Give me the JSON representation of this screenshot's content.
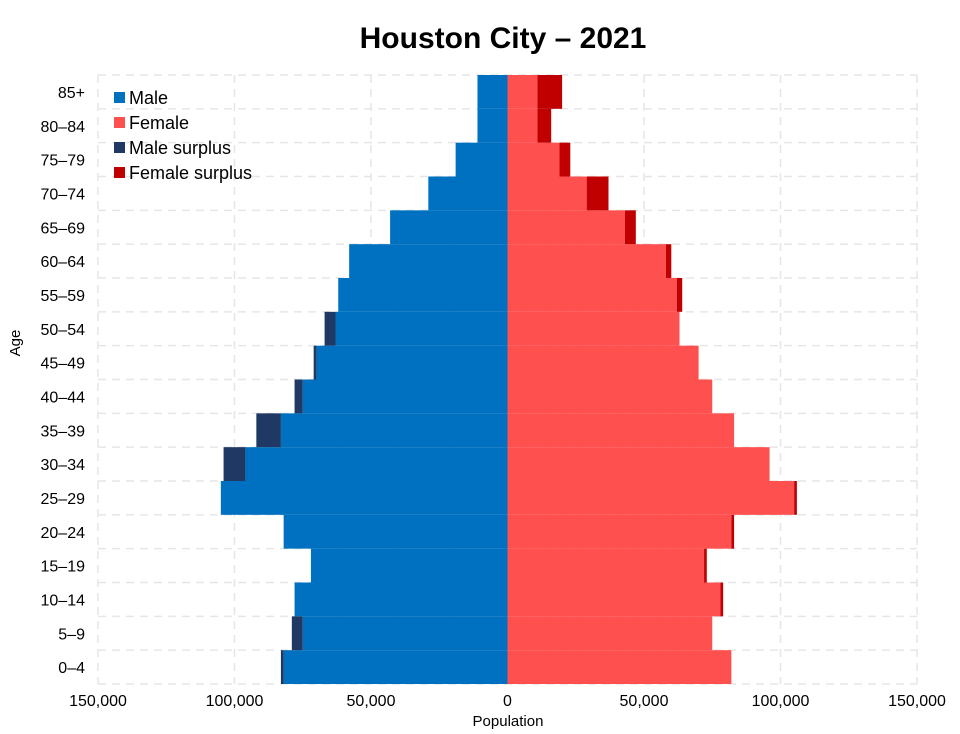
{
  "chart_data": {
    "type": "bar",
    "orientation": "horizontal-population-pyramid",
    "title": "Houston City – 2021",
    "xlabel": "Population",
    "ylabel": "Age",
    "xlim": [
      -150000,
      150000
    ],
    "x_ticks": [
      -150000,
      -100000,
      -50000,
      0,
      50000,
      100000,
      150000
    ],
    "x_tick_labels": [
      "150,000",
      "100,000",
      "50,000",
      "0",
      "50,000",
      "100,000",
      "150,000"
    ],
    "grid": true,
    "legend_position": "top-left",
    "categories": [
      "0–4",
      "5–9",
      "10–14",
      "15–19",
      "20–24",
      "25–29",
      "30–34",
      "35–39",
      "40–44",
      "45–49",
      "50–54",
      "55–59",
      "60–64",
      "65–69",
      "70–74",
      "75–79",
      "80–84",
      "85+"
    ],
    "series": [
      {
        "name": "Male",
        "color": "#0070c0",
        "values": [
          83000,
          79000,
          78000,
          72000,
          82000,
          105000,
          104000,
          92000,
          78000,
          71000,
          67000,
          62000,
          58000,
          43000,
          29000,
          19000,
          11000,
          11000
        ]
      },
      {
        "name": "Female",
        "color": "#ff5050",
        "values": [
          82000,
          75000,
          79000,
          73000,
          83000,
          106000,
          96000,
          83000,
          75000,
          70000,
          63000,
          64000,
          60000,
          47000,
          37000,
          23000,
          16000,
          20000
        ]
      }
    ],
    "legend": [
      {
        "name": "Male",
        "color": "#0070c0"
      },
      {
        "name": "Female",
        "color": "#ff5050"
      },
      {
        "name": "Male surplus",
        "color": "#1f3864"
      },
      {
        "name": "Female surplus",
        "color": "#c00000"
      }
    ]
  }
}
